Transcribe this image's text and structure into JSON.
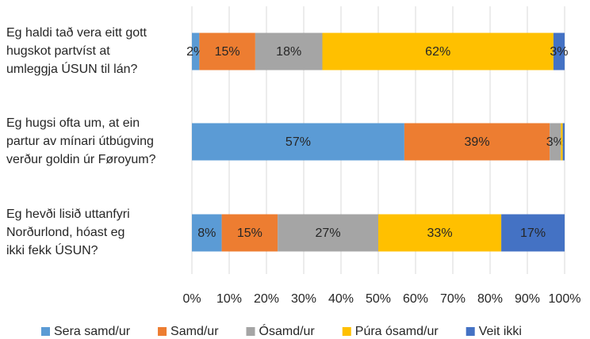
{
  "chart_data": {
    "type": "stacked_barh",
    "categories": [
      [
        "Eg haldi tað vera eitt gott",
        "hugskot partvíst at",
        "umleggja ÚSUN til lán?"
      ],
      [
        "Eg hugsi ofta um, at ein",
        "partur av mínari útbúgving",
        "verður goldin úr Føroyum?"
      ],
      [
        "Eg hevði lisið uttanfyri",
        "Norðurlond, hóast eg",
        "ikki fekk ÚSUN?"
      ]
    ],
    "series": [
      {
        "name": "Sera samd/ur",
        "color": "#5b9bd5",
        "values": [
          2,
          57,
          8
        ],
        "value_labels": [
          "2%",
          "57%",
          "8%"
        ]
      },
      {
        "name": "Samd/ur",
        "color": "#ed7d31",
        "values": [
          15,
          39,
          15
        ],
        "value_labels": [
          "15%",
          "39%",
          "15%"
        ]
      },
      {
        "name": "Ósamd/ur",
        "color": "#a5a5a5",
        "values": [
          18,
          3,
          27
        ],
        "value_labels": [
          "18%",
          "3%",
          "27%"
        ]
      },
      {
        "name": "Púra ósamd/ur",
        "color": "#ffc000",
        "values": [
          62,
          0.5,
          33
        ],
        "value_labels": [
          "62%",
          null,
          "33%"
        ]
      },
      {
        "name": "Veit ikki",
        "color": "#4472c4",
        "values": [
          3,
          0.5,
          17
        ],
        "value_labels": [
          "3%",
          null,
          "17%"
        ]
      }
    ],
    "xlim": [
      0,
      100
    ],
    "xticks": [
      {
        "value": 0,
        "label": "0%"
      },
      {
        "value": 10,
        "label": "10%"
      },
      {
        "value": 20,
        "label": "20%"
      },
      {
        "value": 30,
        "label": "30%"
      },
      {
        "value": 40,
        "label": "40%"
      },
      {
        "value": 50,
        "label": "50%"
      },
      {
        "value": 60,
        "label": "60%"
      },
      {
        "value": 70,
        "label": "70%"
      },
      {
        "value": 80,
        "label": "80%"
      },
      {
        "value": 90,
        "label": "90%"
      },
      {
        "value": 100,
        "label": "100%"
      }
    ],
    "grid": true,
    "legend": "bottom"
  }
}
